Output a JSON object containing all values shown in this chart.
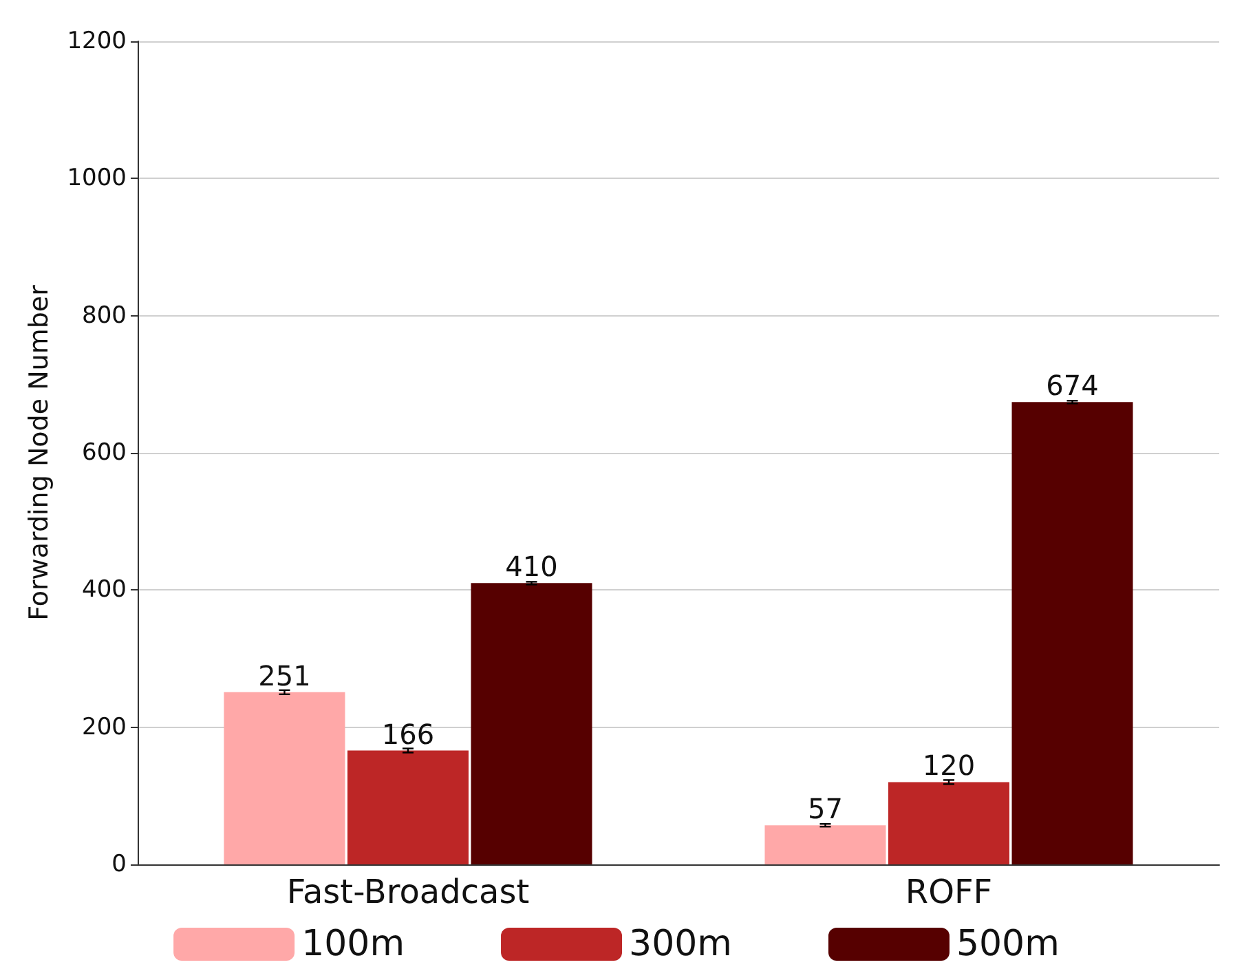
{
  "chart_data": {
    "type": "bar",
    "ylabel": "Forwarding Node Number",
    "categories": [
      "Fast-Broadcast",
      "ROFF"
    ],
    "series": [
      {
        "name": "100m",
        "color": "#ffa8a8",
        "values": [
          251,
          57
        ],
        "errors": [
          3,
          2
        ]
      },
      {
        "name": "300m",
        "color": "#bd2626",
        "values": [
          166,
          120
        ],
        "errors": [
          3,
          3
        ]
      },
      {
        "name": "500m",
        "color": "#560000",
        "values": [
          410,
          674
        ],
        "errors": [
          2,
          2
        ]
      }
    ],
    "ylim": [
      0,
      1200
    ],
    "yticks": [
      0,
      200,
      400,
      600,
      800,
      1000,
      1200
    ],
    "grid": "y",
    "legend": "bottom",
    "data_labels": true
  }
}
